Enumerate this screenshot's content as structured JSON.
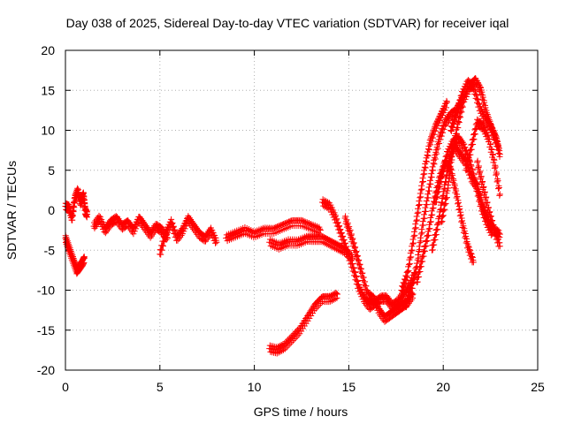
{
  "chart_data": {
    "type": "scatter",
    "title": "Day 038 of 2025, Sidereal Day-to-day VTEC variation (SDTVAR) for receiver iqal",
    "xlabel": "GPS time / hours",
    "ylabel": "SDTVAR / TECUs",
    "xlim": [
      0,
      25
    ],
    "ylim": [
      -20,
      20
    ],
    "xticks": [
      0,
      5,
      10,
      15,
      20,
      25
    ],
    "yticks": [
      -20,
      -15,
      -10,
      -5,
      0,
      5,
      10,
      15,
      20
    ],
    "xtick_labels": [
      "0",
      "5",
      "10",
      "15",
      "20",
      "25"
    ],
    "ytick_labels": [
      "-20",
      "-15",
      "-10",
      "-5",
      "0",
      "5",
      "10",
      "15",
      "20"
    ],
    "grid": true,
    "marker": "+",
    "series": [
      {
        "name": "SDTVAR",
        "color": "#ff0000",
        "tracks": [
          {
            "x": [
              0.0,
              0.2,
              0.35,
              0.5,
              0.65,
              0.8,
              0.95,
              1.05,
              1.15
            ],
            "y": [
              0.5,
              0.3,
              -1.0,
              1.5,
              2.5,
              1.0,
              2.0,
              0.0,
              -0.5
            ]
          },
          {
            "x": [
              0.0,
              0.15,
              0.3,
              0.45,
              0.6,
              0.75,
              0.9,
              1.0
            ],
            "y": [
              -3.5,
              -4.5,
              -5.5,
              -6.5,
              -7.5,
              -7.0,
              -6.5,
              -6.0
            ]
          },
          {
            "x": [
              1.5,
              1.8,
              2.1,
              2.4,
              2.7,
              3.0,
              3.3,
              3.6,
              3.9,
              4.2,
              4.5,
              4.8,
              5.1,
              5.4
            ],
            "y": [
              -2.0,
              -1.0,
              -2.5,
              -1.5,
              -1.0,
              -2.0,
              -1.5,
              -2.5,
              -1.0,
              -2.0,
              -3.0,
              -2.0,
              -2.5,
              -3.5
            ]
          },
          {
            "x": [
              5.0,
              5.3,
              5.6,
              5.9,
              6.2,
              6.5,
              6.8,
              7.1,
              7.4,
              7.7,
              8.0
            ],
            "y": [
              -5.5,
              -3.0,
              -1.5,
              -3.5,
              -2.5,
              -1.0,
              -2.0,
              -3.0,
              -3.5,
              -2.5,
              -4.0
            ]
          },
          {
            "x": [
              8.5,
              9.0,
              9.5,
              10.0,
              10.5,
              11.0,
              11.5,
              12.0,
              12.5,
              13.0,
              13.5
            ],
            "y": [
              -3.5,
              -3.0,
              -2.5,
              -3.0,
              -2.5,
              -2.5,
              -2.0,
              -1.5,
              -1.5,
              -2.0,
              -2.5
            ]
          },
          {
            "x": [
              10.8,
              11.3,
              11.8,
              12.3,
              12.8,
              13.2,
              13.6,
              14.0,
              14.4,
              14.8,
              15.2
            ],
            "y": [
              -4.0,
              -4.5,
              -4.0,
              -4.0,
              -3.5,
              -3.5,
              -3.5,
              -4.0,
              -4.5,
              -5.0,
              -6.0
            ]
          },
          {
            "x": [
              10.8,
              11.2,
              11.6,
              12.0,
              12.4,
              12.8,
              13.2,
              13.6,
              14.0,
              14.4
            ],
            "y": [
              -17.3,
              -17.5,
              -17.0,
              -16.0,
              -15.0,
              -13.5,
              -12.0,
              -11.0,
              -11.0,
              -10.5
            ]
          },
          {
            "x": [
              13.6,
              14.0,
              14.3,
              14.6,
              14.9,
              15.2,
              15.5,
              15.8,
              16.1,
              16.4,
              16.7,
              17.0,
              17.3,
              17.6,
              17.9,
              18.2,
              18.5
            ],
            "y": [
              1.0,
              0.5,
              -1.0,
              -3.0,
              -5.0,
              -7.0,
              -9.5,
              -11.0,
              -12.0,
              -11.5,
              -11.0,
              -11.0,
              -12.0,
              -11.5,
              -10.5,
              -9.5,
              -8.0
            ]
          },
          {
            "x": [
              14.8,
              15.1,
              15.4,
              15.7,
              16.0,
              16.3,
              16.6,
              16.9,
              17.2,
              17.5,
              17.8,
              18.1,
              18.4
            ],
            "y": [
              -1.0,
              -3.0,
              -5.5,
              -8.0,
              -10.5,
              -11.0,
              -12.5,
              -13.5,
              -13.0,
              -12.5,
              -12.0,
              -11.5,
              -10.5
            ]
          },
          {
            "x": [
              17.8,
              18.1,
              18.4,
              18.7,
              19.0,
              19.3,
              19.6,
              19.9,
              20.2
            ],
            "y": [
              -10.0,
              -8.0,
              -4.0,
              0.5,
              5.0,
              8.5,
              10.5,
              12.0,
              13.5
            ]
          },
          {
            "x": [
              18.0,
              18.3,
              18.6,
              18.9,
              19.2,
              19.5,
              19.8,
              20.1,
              20.4,
              20.7,
              21.0
            ],
            "y": [
              -12.0,
              -10.0,
              -7.0,
              -2.0,
              2.0,
              6.0,
              9.0,
              11.0,
              12.0,
              12.5,
              14.0
            ]
          },
          {
            "x": [
              18.6,
              18.9,
              19.2,
              19.5,
              19.8,
              20.1,
              20.4,
              20.7,
              21.0,
              21.3,
              21.6
            ],
            "y": [
              -9.0,
              -6.0,
              -3.0,
              1.0,
              4.0,
              6.0,
              5.0,
              2.0,
              -1.5,
              -4.5,
              -6.5
            ]
          },
          {
            "x": [
              19.4,
              19.7,
              20.0,
              20.3,
              20.6,
              20.9,
              21.2,
              21.5,
              21.8,
              22.1,
              22.4,
              22.7,
              23.0
            ],
            "y": [
              -5.0,
              -2.0,
              2.0,
              6.0,
              8.0,
              7.0,
              6.0,
              4.0,
              3.0,
              0.5,
              -1.5,
              -2.5,
              -3.0
            ]
          },
          {
            "x": [
              19.6,
              19.9,
              20.2,
              20.5,
              20.8,
              21.1,
              21.4,
              21.7,
              22.0,
              22.3,
              22.6
            ],
            "y": [
              1.0,
              4.0,
              7.0,
              8.5,
              9.0,
              8.0,
              6.0,
              3.5,
              0.5,
              -1.5,
              -3.0
            ]
          },
          {
            "x": [
              19.9,
              20.2,
              20.5,
              20.8,
              21.1,
              21.4,
              21.7,
              22.0,
              22.3,
              22.6,
              22.9
            ],
            "y": [
              -1.5,
              2.0,
              7.5,
              11.0,
              14.0,
              15.5,
              16.3,
              15.0,
              12.0,
              10.0,
              8.0
            ]
          },
          {
            "x": [
              20.4,
              20.7,
              21.0,
              21.3,
              21.6,
              21.9,
              22.2,
              22.5,
              22.8,
              23.0
            ],
            "y": [
              10.0,
              12.0,
              14.5,
              16.0,
              15.5,
              13.0,
              11.5,
              10.5,
              9.0,
              7.0
            ]
          },
          {
            "x": [
              21.2,
              21.5,
              21.8,
              22.1,
              22.4,
              22.7,
              23.0
            ],
            "y": [
              5.0,
              8.0,
              11.0,
              10.5,
              9.0,
              6.0,
              2.0
            ]
          },
          {
            "x": [
              21.8,
              22.1,
              22.4,
              22.7,
              23.0
            ],
            "y": [
              6.0,
              3.0,
              0.0,
              -2.5,
              -4.5
            ]
          }
        ]
      }
    ]
  }
}
